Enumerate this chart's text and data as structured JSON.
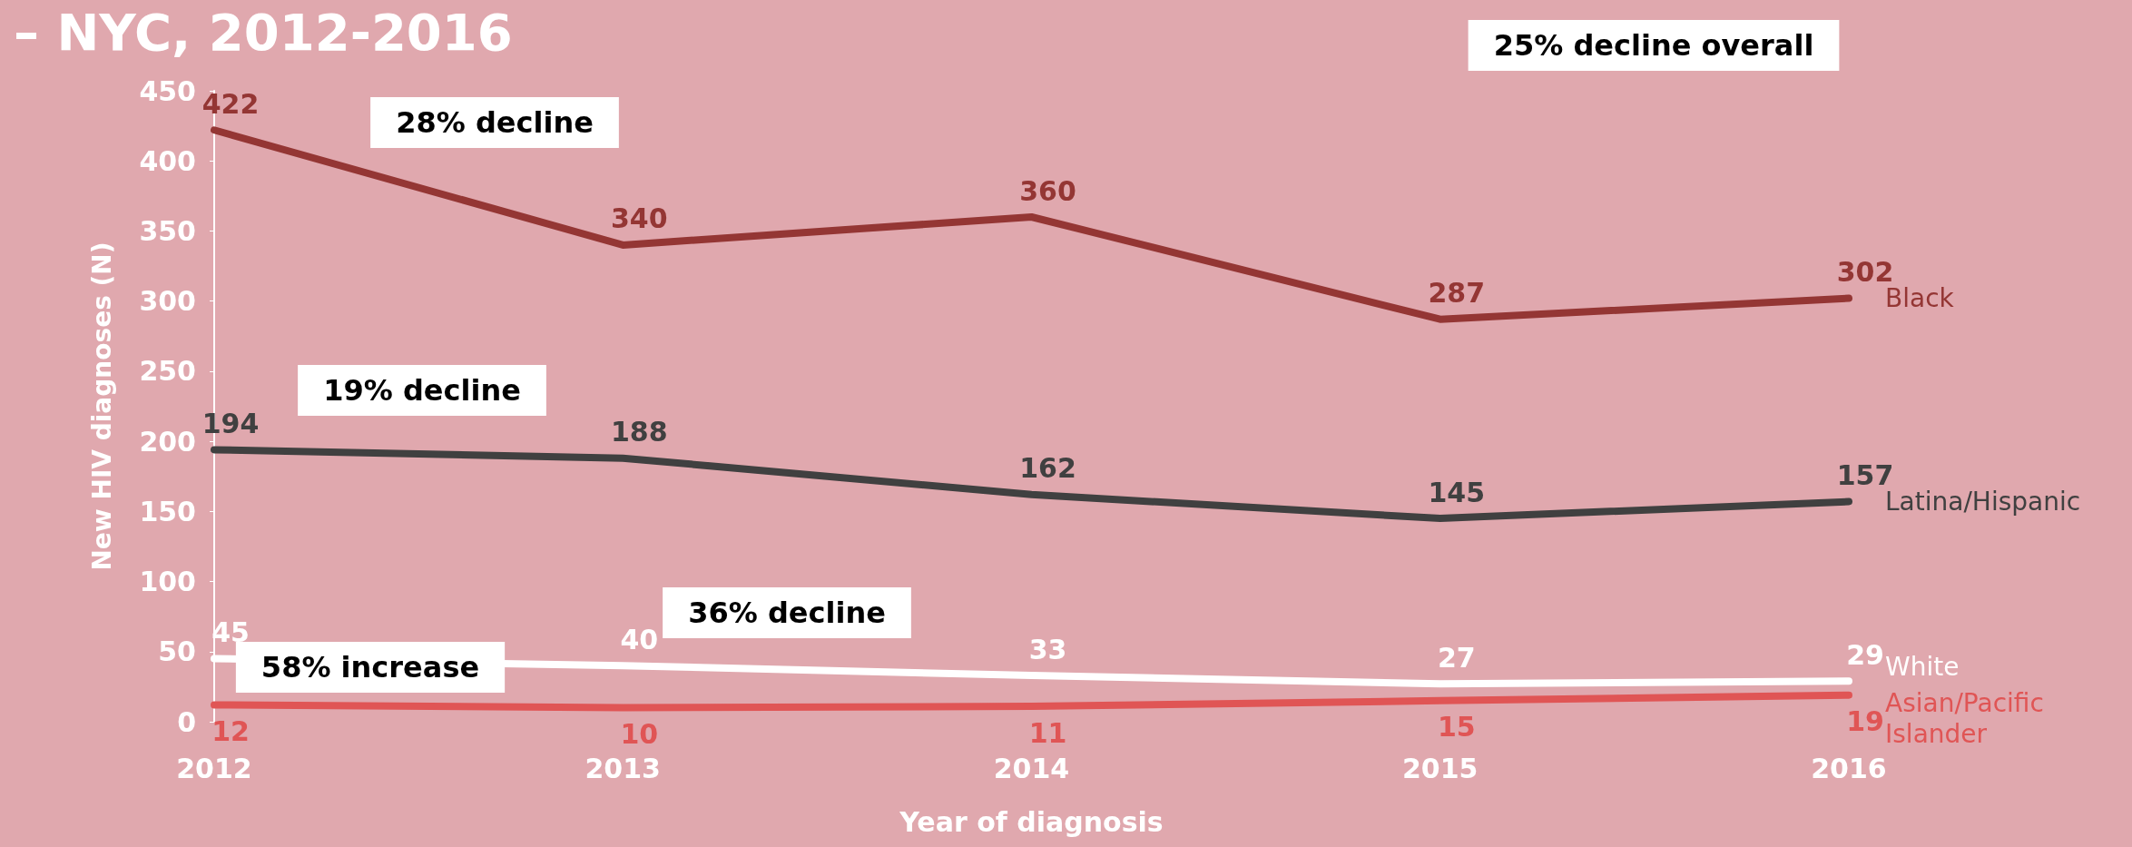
{
  "chart_data": {
    "type": "line",
    "title": "– NYC, 2012-2016",
    "xlabel": "Year of diagnosis",
    "ylabel": "New HIV diagnoses (N)",
    "categories": [
      "2012",
      "2013",
      "2014",
      "2015",
      "2016"
    ],
    "series": [
      {
        "name": "Black",
        "color": "#943634",
        "values": [
          422,
          340,
          360,
          287,
          302
        ]
      },
      {
        "name": "Latina/Hispanic",
        "color": "#404040",
        "values": [
          194,
          188,
          162,
          145,
          157
        ]
      },
      {
        "name": "White",
        "color": "#ffffff",
        "values": [
          45,
          40,
          33,
          27,
          29
        ]
      },
      {
        "name": "Asian/Pacific Islander",
        "color": "#e05555",
        "values": [
          12,
          10,
          11,
          15,
          19
        ]
      }
    ],
    "ylim": [
      0,
      450
    ],
    "yticks": [
      0,
      50,
      100,
      150,
      200,
      250,
      300,
      350,
      400,
      450
    ],
    "annotations": [
      "28% decline",
      "19% decline",
      "36% decline",
      "58% increase",
      "25% decline overall"
    ],
    "data_labels": true,
    "grid": false,
    "legend": false,
    "marker": "none",
    "line_style": "solid"
  }
}
